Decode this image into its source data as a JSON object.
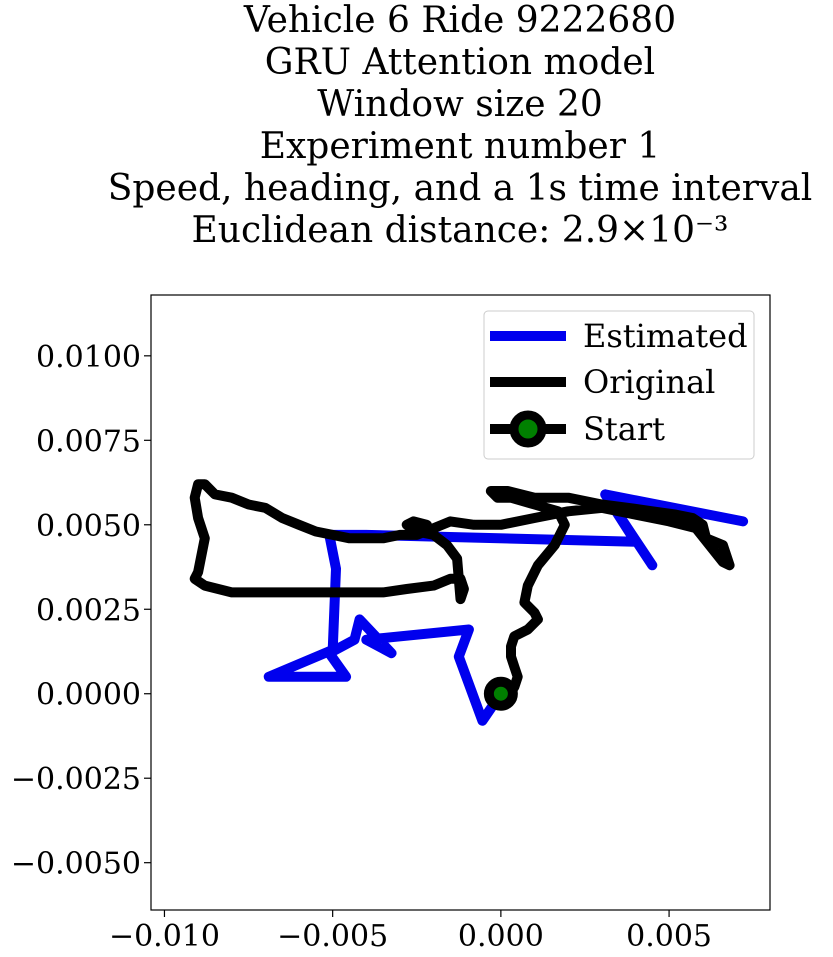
{
  "chart_data": {
    "type": "line",
    "title_lines": [
      "Vehicle 6 Ride 9222680",
      "GRU Attention model",
      "Window size 20",
      "Experiment number 1",
      "Speed, heading, and a 1s time interval",
      "Euclidean distance: 2.9×10⁻³"
    ],
    "xlabel": "",
    "ylabel": "",
    "xlim": [
      -0.0104,
      0.008
    ],
    "ylim": [
      -0.0064,
      0.0118
    ],
    "xticks": [
      -0.01,
      -0.005,
      0.0,
      0.005
    ],
    "xtick_labels": [
      "−0.010",
      "−0.005",
      "0.000",
      "0.005"
    ],
    "yticks": [
      0.01,
      0.0075,
      0.005,
      0.0025,
      0.0,
      -0.0025,
      -0.005
    ],
    "ytick_labels": [
      "0.0100",
      "0.0075",
      "0.0050",
      "0.0025",
      "0.0000",
      "−0.0025",
      "−0.0050"
    ],
    "grid": false,
    "legend_position": "top-right",
    "series": [
      {
        "name": "Estimated",
        "color": "#0000ee",
        "x": [
          0,
          -0.00055,
          -0.00125,
          -0.00095,
          -0.004,
          -0.00325,
          -0.0042,
          -0.00435,
          -0.0051,
          -0.0046,
          -0.0069,
          -0.005,
          -0.0049,
          -0.0051,
          -0.004,
          0.004,
          0.0031,
          0.0072,
          0.0031,
          0.0045
        ],
        "y": [
          0,
          -0.0008,
          0.0011,
          0.0019,
          0.0016,
          0.0012,
          0.0022,
          0.0016,
          0.0012,
          0.0005,
          0.0005,
          0.0013,
          0.0037,
          0.0047,
          0.0047,
          0.0045,
          0.0059,
          0.0051,
          0.0059,
          0.0038
        ]
      },
      {
        "name": "Original",
        "color": "#000000",
        "x": [
          0,
          0.0004,
          0.0005,
          0.0004,
          0.0003,
          0.0003,
          0.0004,
          0.0008,
          0.0011,
          0.001,
          0.0007,
          0.0008,
          0.0011,
          0.0016,
          0.0019,
          0.0017,
          0.001,
          0.0003,
          -0.0001,
          -0.0003,
          0.0002,
          0.001,
          0.002,
          0.003,
          0.0038,
          0.0045,
          0.0052,
          0.0057,
          0.006,
          0.0061,
          0.0066,
          0.0068,
          0.0066,
          0.0058,
          0.005,
          0.004,
          0.003,
          0.002,
          0.001,
          0.0,
          -0.0008,
          -0.0015,
          -0.002,
          -0.0025,
          -0.003,
          -0.0035,
          -0.004,
          -0.0045,
          -0.005,
          -0.0055,
          -0.006,
          -0.0065,
          -0.007,
          -0.0075,
          -0.008,
          -0.0085,
          -0.0088,
          -0.009,
          -0.0091,
          -0.009,
          -0.0088,
          -0.009,
          -0.0091,
          -0.0088,
          -0.008,
          -0.007,
          -0.006,
          -0.005,
          -0.0042,
          -0.0035,
          -0.0028,
          -0.002,
          -0.0015,
          -0.0012,
          -0.0011,
          -0.0012,
          -0.0013,
          -0.0016,
          -0.002,
          -0.0025,
          -0.0028,
          -0.0026,
          -0.0022
        ],
        "y": [
          0,
          0.0002,
          0.0005,
          0.0008,
          0.0011,
          0.0014,
          0.0017,
          0.0019,
          0.0022,
          0.0024,
          0.0027,
          0.0032,
          0.0038,
          0.0044,
          0.005,
          0.0054,
          0.0056,
          0.0058,
          0.0058,
          0.006,
          0.006,
          0.0058,
          0.0058,
          0.0056,
          0.0055,
          0.0054,
          0.0053,
          0.0052,
          0.005,
          0.0046,
          0.0044,
          0.0038,
          0.0039,
          0.0049,
          0.0051,
          0.0053,
          0.0055,
          0.0054,
          0.0052,
          0.005,
          0.005,
          0.0051,
          0.0049,
          0.0047,
          0.0047,
          0.0046,
          0.0046,
          0.0046,
          0.0047,
          0.0048,
          0.005,
          0.0052,
          0.0055,
          0.0056,
          0.0058,
          0.0059,
          0.0062,
          0.0062,
          0.0058,
          0.0052,
          0.0046,
          0.0036,
          0.0034,
          0.0032,
          0.003,
          0.003,
          0.003,
          0.003,
          0.003,
          0.003,
          0.0031,
          0.0032,
          0.0034,
          0.0034,
          0.0031,
          0.0028,
          0.004,
          0.0044,
          0.0047,
          0.0048,
          0.005,
          0.0051,
          0.005
        ]
      }
    ],
    "start_marker": {
      "name": "Start",
      "x": 0,
      "y": 0,
      "edge_color": "#000000",
      "face_color": "#008000"
    }
  }
}
